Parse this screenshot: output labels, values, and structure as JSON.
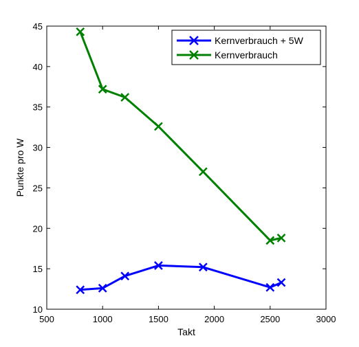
{
  "chart_data": {
    "type": "line",
    "xlabel": "Takt",
    "ylabel": "Punkte pro W",
    "xlim": [
      500,
      3000
    ],
    "ylim": [
      10,
      45
    ],
    "xticks": [
      500,
      1000,
      1500,
      2000,
      2500,
      3000
    ],
    "yticks": [
      10,
      15,
      20,
      25,
      30,
      35,
      40,
      45
    ],
    "grid": false,
    "legend_position": "top-right",
    "series": [
      {
        "name": "Kernverbrauch + 5W",
        "color": "#0000ff",
        "marker": "x",
        "x": [
          800,
          1000,
          1200,
          1500,
          1900,
          2500,
          2600
        ],
        "y": [
          12.4,
          12.6,
          14.1,
          15.4,
          15.2,
          12.7,
          13.3
        ]
      },
      {
        "name": "Kernverbrauch",
        "color": "#008000",
        "marker": "x",
        "x": [
          800,
          1000,
          1200,
          1500,
          1900,
          2500,
          2600
        ],
        "y": [
          44.3,
          37.2,
          36.2,
          32.6,
          27.0,
          18.5,
          18.8
        ]
      }
    ]
  }
}
